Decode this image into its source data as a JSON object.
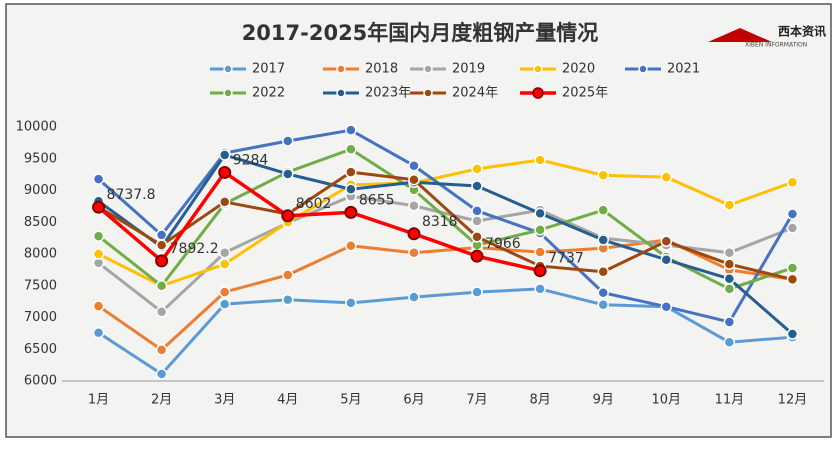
{
  "logo": {
    "name": "西本资讯",
    "sub": "XIBEN INFORMATION"
  },
  "chart_data": {
    "type": "line",
    "title": "2017-2025年国内月度粗钢产量情况",
    "categories": [
      "1月",
      "2月",
      "3月",
      "4月",
      "5月",
      "6月",
      "7月",
      "8月",
      "9月",
      "10月",
      "11月",
      "12月"
    ],
    "ylim": [
      6000,
      10000
    ],
    "yticks": [
      6000,
      6500,
      7000,
      7500,
      8000,
      8500,
      9000,
      9500,
      10000
    ],
    "grid": false,
    "series": [
      {
        "name": "2017",
        "color": "#5b9bd5",
        "values": [
          6760,
          6110,
          7210,
          7280,
          7230,
          7320,
          7400,
          7450,
          7200,
          7170,
          6610,
          6690
        ]
      },
      {
        "name": "2018",
        "color": "#ed7d31",
        "values": [
          7180,
          6490,
          7400,
          7670,
          8130,
          8020,
          8100,
          8030,
          8090,
          8220,
          7750,
          7600
        ]
      },
      {
        "name": "2019",
        "color": "#a5a5a5",
        "values": [
          7860,
          7090,
          8020,
          8490,
          8910,
          8760,
          8520,
          8690,
          8250,
          8140,
          8020,
          8410
        ]
      },
      {
        "name": "2020",
        "color": "#ffc000",
        "values": [
          8000,
          7500,
          7840,
          8500,
          9090,
          9120,
          9340,
          9480,
          9240,
          9210,
          8770,
          9130
        ]
      },
      {
        "name": "2021",
        "color": "#4472c4",
        "values": [
          9180,
          8300,
          9590,
          9780,
          9950,
          9390,
          8680,
          8330,
          7390,
          7170,
          6930,
          8630
        ]
      },
      {
        "name": "2022",
        "color": "#70ad47",
        "values": [
          8280,
          7500,
          8790,
          9290,
          9650,
          9010,
          8140,
          8380,
          8690,
          7950,
          7450,
          7780
        ]
      },
      {
        "name": "2023年",
        "color": "#255e91",
        "values": [
          8830,
          8110,
          9560,
          9260,
          9020,
          9130,
          9070,
          8640,
          8220,
          7910,
          7610,
          6740
        ]
      },
      {
        "name": "2024年",
        "color": "#9e480e",
        "values": [
          8740,
          8140,
          8820,
          8630,
          9290,
          9170,
          8270,
          7810,
          7720,
          8200,
          7840,
          7600
        ]
      },
      {
        "name": "2025年",
        "color": "#ff0000",
        "values": [
          8737.8,
          7892.2,
          9284,
          8602,
          8655,
          8318,
          7966,
          7737,
          null,
          null,
          null,
          null
        ]
      }
    ]
  }
}
